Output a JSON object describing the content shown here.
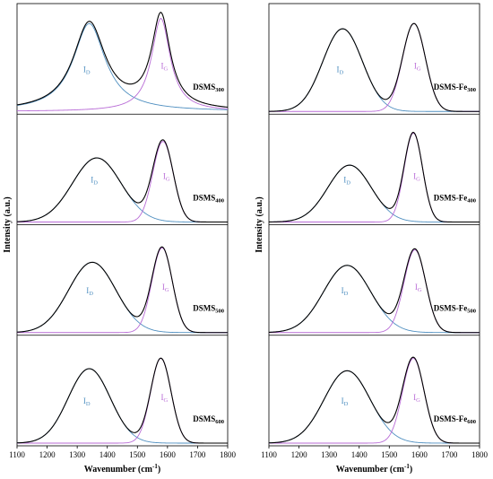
{
  "chart_data": {
    "type": "line",
    "x_range": [
      1100,
      1800
    ],
    "x_ticks": [
      "1100",
      "1200",
      "1300",
      "1400",
      "1500",
      "1600",
      "1700",
      "1800"
    ],
    "xlabel": "Wavenumber (cm",
    "xlabel_sup": "-1",
    "xlabel_end": ")",
    "ylabel": "Intensity (a.u.)",
    "colors": {
      "fit": "#000000",
      "D_band": "#4f8fc0",
      "G_band": "#b86bd6"
    },
    "peak_labels": {
      "D": "I",
      "D_sub": "D",
      "G": "I",
      "G_sub": "G"
    },
    "columns": [
      {
        "panels": [
          {
            "label": "DSMS",
            "sub": "300",
            "shape": "lorentzian",
            "D": {
              "center": 1340,
              "amplitude": 0.85,
              "width": 130
            },
            "G": {
              "center": 1578,
              "amplitude": 0.9,
              "width": 75
            }
          },
          {
            "label": "DSMS",
            "sub": "400",
            "shape": "gaussian",
            "D": {
              "center": 1365,
              "amplitude": 0.62,
              "width": 190
            },
            "G": {
              "center": 1585,
              "amplitude": 0.78,
              "width": 80
            }
          },
          {
            "label": "DSMS",
            "sub": "500",
            "shape": "gaussian",
            "D": {
              "center": 1350,
              "amplitude": 0.68,
              "width": 185
            },
            "G": {
              "center": 1582,
              "amplitude": 0.82,
              "width": 80
            }
          },
          {
            "label": "DSMS",
            "sub": "600",
            "shape": "gaussian",
            "D": {
              "center": 1340,
              "amplitude": 0.72,
              "width": 165
            },
            "G": {
              "center": 1578,
              "amplitude": 0.82,
              "width": 80
            }
          }
        ]
      },
      {
        "panels": [
          {
            "label": "DSMS-Fe",
            "sub": "300",
            "shape": "gaussian",
            "D": {
              "center": 1345,
              "amplitude": 0.8,
              "width": 155
            },
            "G": {
              "center": 1582,
              "amplitude": 0.85,
              "width": 90
            }
          },
          {
            "label": "DSMS-Fe",
            "sub": "400",
            "shape": "gaussian",
            "D": {
              "center": 1368,
              "amplitude": 0.55,
              "width": 170
            },
            "G": {
              "center": 1580,
              "amplitude": 0.86,
              "width": 72
            }
          },
          {
            "label": "DSMS-Fe",
            "sub": "500",
            "shape": "gaussian",
            "D": {
              "center": 1360,
              "amplitude": 0.65,
              "width": 185
            },
            "G": {
              "center": 1585,
              "amplitude": 0.8,
              "width": 85
            }
          },
          {
            "label": "DSMS-Fe",
            "sub": "600",
            "shape": "gaussian",
            "D": {
              "center": 1360,
              "amplitude": 0.7,
              "width": 180
            },
            "G": {
              "center": 1580,
              "amplitude": 0.82,
              "width": 85
            }
          }
        ]
      }
    ]
  }
}
